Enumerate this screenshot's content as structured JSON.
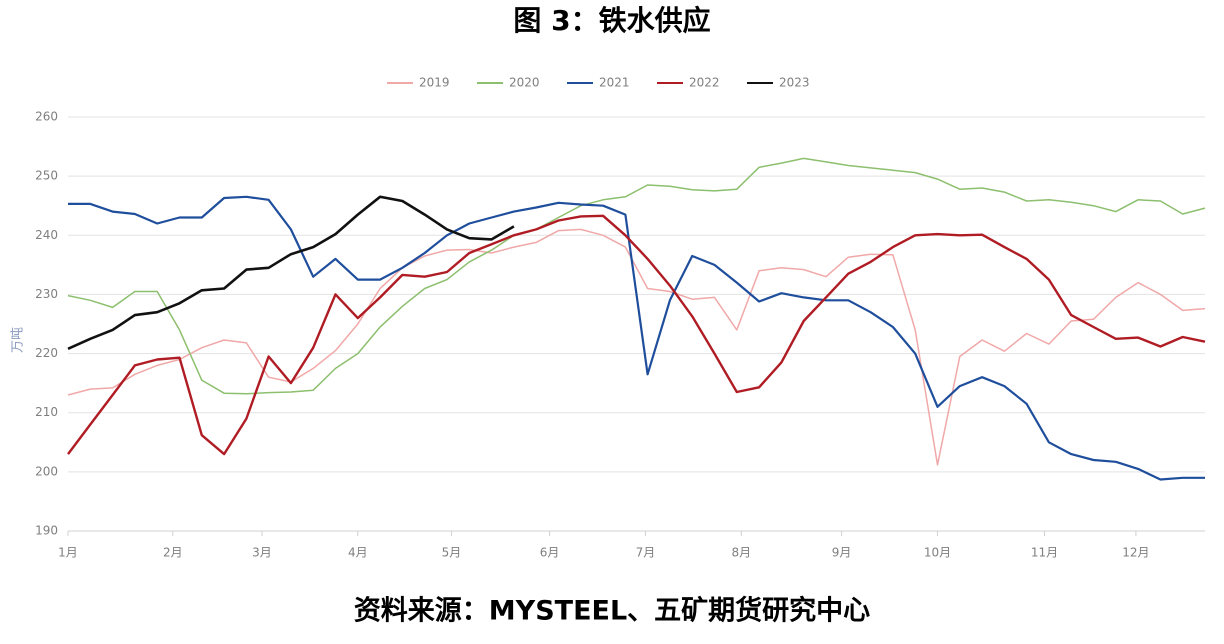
{
  "chart_data": {
    "type": "line",
    "title": "图 3：铁水供应",
    "source": "资料来源：MYSTEEL、五矿期货研究中心",
    "y_label": "万吨",
    "x": [
      0,
      1,
      2,
      3,
      4,
      5,
      6,
      7,
      8,
      9,
      10,
      11,
      12,
      13,
      14,
      15,
      16,
      17,
      18,
      19,
      20,
      21,
      22,
      23,
      24,
      25,
      26,
      27,
      28,
      29,
      30,
      31,
      32,
      33,
      34,
      35,
      36,
      37,
      38,
      39,
      40,
      41,
      42,
      43,
      44,
      45,
      46,
      47,
      48,
      49,
      50,
      51
    ],
    "xlim": [
      0,
      51
    ],
    "xticks": [
      {
        "value": 0,
        "label": "1月"
      },
      {
        "value": 4.7,
        "label": "2月"
      },
      {
        "value": 8.7,
        "label": "3月"
      },
      {
        "value": 13,
        "label": "4月"
      },
      {
        "value": 17.2,
        "label": "5月"
      },
      {
        "value": 21.6,
        "label": "6月"
      },
      {
        "value": 25.9,
        "label": "7月"
      },
      {
        "value": 30.2,
        "label": "8月"
      },
      {
        "value": 34.7,
        "label": "9月"
      },
      {
        "value": 39,
        "label": "10月"
      },
      {
        "value": 43.8,
        "label": "11月"
      },
      {
        "value": 47.9,
        "label": "12月"
      }
    ],
    "ylim": [
      190,
      260
    ],
    "yticks": [
      190,
      200,
      210,
      220,
      230,
      240,
      250,
      260
    ],
    "grid": true,
    "legend": "top",
    "series": [
      {
        "name": "2019",
        "color": "#f0a8a8",
        "width": 1.5,
        "values": [
          213,
          214,
          214.2,
          216.5,
          218,
          219,
          221,
          222.3,
          221.8,
          216,
          215.2,
          217.5,
          220.5,
          225,
          231,
          234.5,
          236.5,
          237.5,
          237.6,
          237,
          238,
          238.8,
          240.8,
          241,
          240,
          238,
          231,
          230.5,
          229.2,
          229.5,
          224,
          234,
          234.5,
          234.2,
          233,
          236.3,
          236.8,
          236.7,
          224,
          201.2,
          219.5,
          222.3,
          220.4,
          223.4,
          221.6,
          225.5,
          225.8,
          229.5,
          232,
          230,
          227.3,
          227.6
        ]
      },
      {
        "name": "2020",
        "color": "#8cbf6e",
        "width": 1.5,
        "values": [
          229.8,
          229,
          227.8,
          230.5,
          230.5,
          224,
          215.5,
          213.3,
          213.2,
          213.4,
          213.5,
          213.8,
          217.5,
          220,
          224.5,
          228,
          231,
          232.5,
          235.5,
          237.5,
          240,
          241,
          243,
          245,
          246,
          246.5,
          248.5,
          248.3,
          247.7,
          247.5,
          247.8,
          251.5,
          252.2,
          253,
          252.4,
          251.8,
          251.4,
          251,
          250.6,
          249.5,
          247.8,
          248,
          247.3,
          245.8,
          246,
          245.6,
          245,
          244,
          246,
          245.8,
          243.6,
          244.6
        ]
      },
      {
        "name": "2021",
        "color": "#1f4e9c",
        "width": 2.2,
        "values": [
          245.3,
          245.3,
          244,
          243.6,
          242,
          243,
          243,
          246.3,
          246.5,
          246,
          241,
          233,
          236,
          232.5,
          232.5,
          234.5,
          237,
          240,
          242,
          243,
          244,
          244.7,
          245.5,
          245.2,
          245,
          243.5,
          216.5,
          229,
          236.5,
          235,
          232,
          228.8,
          230.2,
          229.5,
          229,
          229,
          227,
          224.5,
          220,
          211,
          214.5,
          216,
          214.5,
          211.5,
          205,
          203,
          202,
          201.7,
          200.5,
          198.7,
          199,
          199
        ]
      },
      {
        "name": "2022",
        "color": "#b01c24",
        "width": 2.4,
        "values": [
          203,
          208,
          213,
          218,
          219,
          219.3,
          206.2,
          203,
          209,
          219.5,
          215,
          221,
          230,
          226,
          229.5,
          233.3,
          233,
          233.8,
          237,
          238.5,
          240,
          241,
          242.5,
          243.2,
          243.3,
          240,
          236,
          231.5,
          226.3,
          220,
          213.5,
          214.3,
          218.5,
          225.5,
          229.5,
          233.5,
          235.5,
          238,
          240,
          240.2,
          240,
          240.1,
          238,
          236,
          232.5,
          226.5,
          224.5,
          222.5,
          222.7,
          221.2,
          222.8,
          222
        ]
      },
      {
        "name": "2023",
        "color": "#111111",
        "width": 2.6,
        "values": [
          220.8,
          222.5,
          224,
          226.5,
          227,
          228.5,
          230.7,
          231,
          234.2,
          234.5,
          236.8,
          238,
          240.2,
          243.5,
          246.5,
          245.8,
          243.5,
          241,
          239.5,
          239.3,
          241.5,
          null,
          null,
          null,
          null,
          null,
          null,
          null,
          null,
          null,
          null,
          null,
          null,
          null,
          null,
          null,
          null,
          null,
          null,
          null,
          null,
          null,
          null,
          null,
          null,
          null,
          null,
          null,
          null,
          null,
          null,
          null
        ]
      }
    ]
  }
}
